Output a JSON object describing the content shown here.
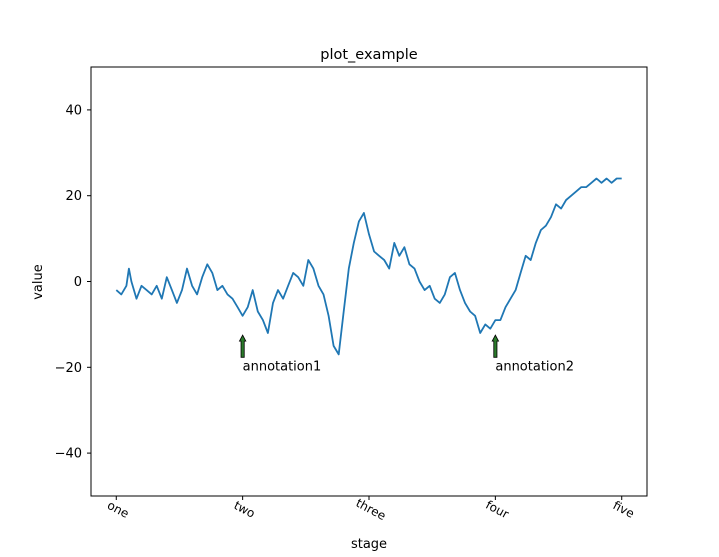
{
  "chart_data": {
    "type": "line",
    "title": "plot_example",
    "xlabel": "stage",
    "ylabel": "value",
    "x_ticks": [
      {
        "value": 0,
        "label": "one"
      },
      {
        "value": 250,
        "label": "two"
      },
      {
        "value": 500,
        "label": "three"
      },
      {
        "value": 750,
        "label": "four"
      },
      {
        "value": 1000,
        "label": "five"
      }
    ],
    "y_ticks": [
      -40,
      -20,
      0,
      20,
      40
    ],
    "xlim": [
      -50,
      1050
    ],
    "ylim": [
      -50,
      50
    ],
    "grid": false,
    "line_color": "#1f77b4",
    "annotation_color": "#2a7a2a",
    "annotations": [
      {
        "text": "annotation1",
        "xy": [
          250,
          -12.5
        ],
        "xytext": [
          250,
          -20
        ]
      },
      {
        "text": "annotation2",
        "xy": [
          750,
          -12.5
        ],
        "xytext": [
          750,
          -20
        ]
      }
    ],
    "series": [
      {
        "x": [
          0,
          10,
          20,
          25,
          30,
          40,
          50,
          60,
          70,
          80,
          90,
          100,
          110,
          120,
          130,
          140,
          150,
          160,
          170,
          180,
          190,
          200,
          210,
          220,
          230,
          240,
          250,
          260,
          270,
          280,
          290,
          300,
          310,
          320,
          330,
          340,
          350,
          360,
          370,
          380,
          390,
          400,
          410,
          420,
          430,
          440,
          450,
          460,
          470,
          480,
          490,
          500,
          510,
          520,
          530,
          540,
          550,
          560,
          570,
          580,
          590,
          600,
          610,
          620,
          630,
          640,
          650,
          660,
          670,
          680,
          690,
          700,
          710,
          720,
          730,
          740,
          750,
          760,
          770,
          780,
          790,
          800,
          810,
          820,
          830,
          840,
          850,
          860,
          870,
          880,
          890,
          900,
          910,
          920,
          930,
          940,
          950,
          960,
          970,
          980,
          990,
          1000
        ],
        "y": [
          -2,
          -3,
          -1,
          3,
          0,
          -4,
          -1,
          -2,
          -3,
          -1,
          -4,
          1,
          -2,
          -5,
          -2,
          3,
          -1,
          -3,
          1,
          4,
          2,
          -2,
          -1,
          -3,
          -4,
          -6,
          -8,
          -6,
          -2,
          -7,
          -9,
          -12,
          -5,
          -2,
          -4,
          -1,
          2,
          1,
          -1,
          5,
          3,
          -1,
          -3,
          -8,
          -15,
          -17,
          -7,
          3,
          9,
          14,
          16,
          11,
          7,
          6,
          5,
          3,
          9,
          6,
          8,
          4,
          3,
          0,
          -2,
          -1,
          -4,
          -5,
          -3,
          1,
          2,
          -2,
          -5,
          -7,
          -8,
          -12,
          -10,
          -11,
          -9,
          -9,
          -6,
          -4,
          -2,
          2,
          6,
          5,
          9,
          12,
          13,
          15,
          18,
          17,
          19,
          20,
          21,
          22,
          22,
          23,
          24,
          23,
          24,
          23,
          24,
          24
        ]
      }
    ]
  }
}
